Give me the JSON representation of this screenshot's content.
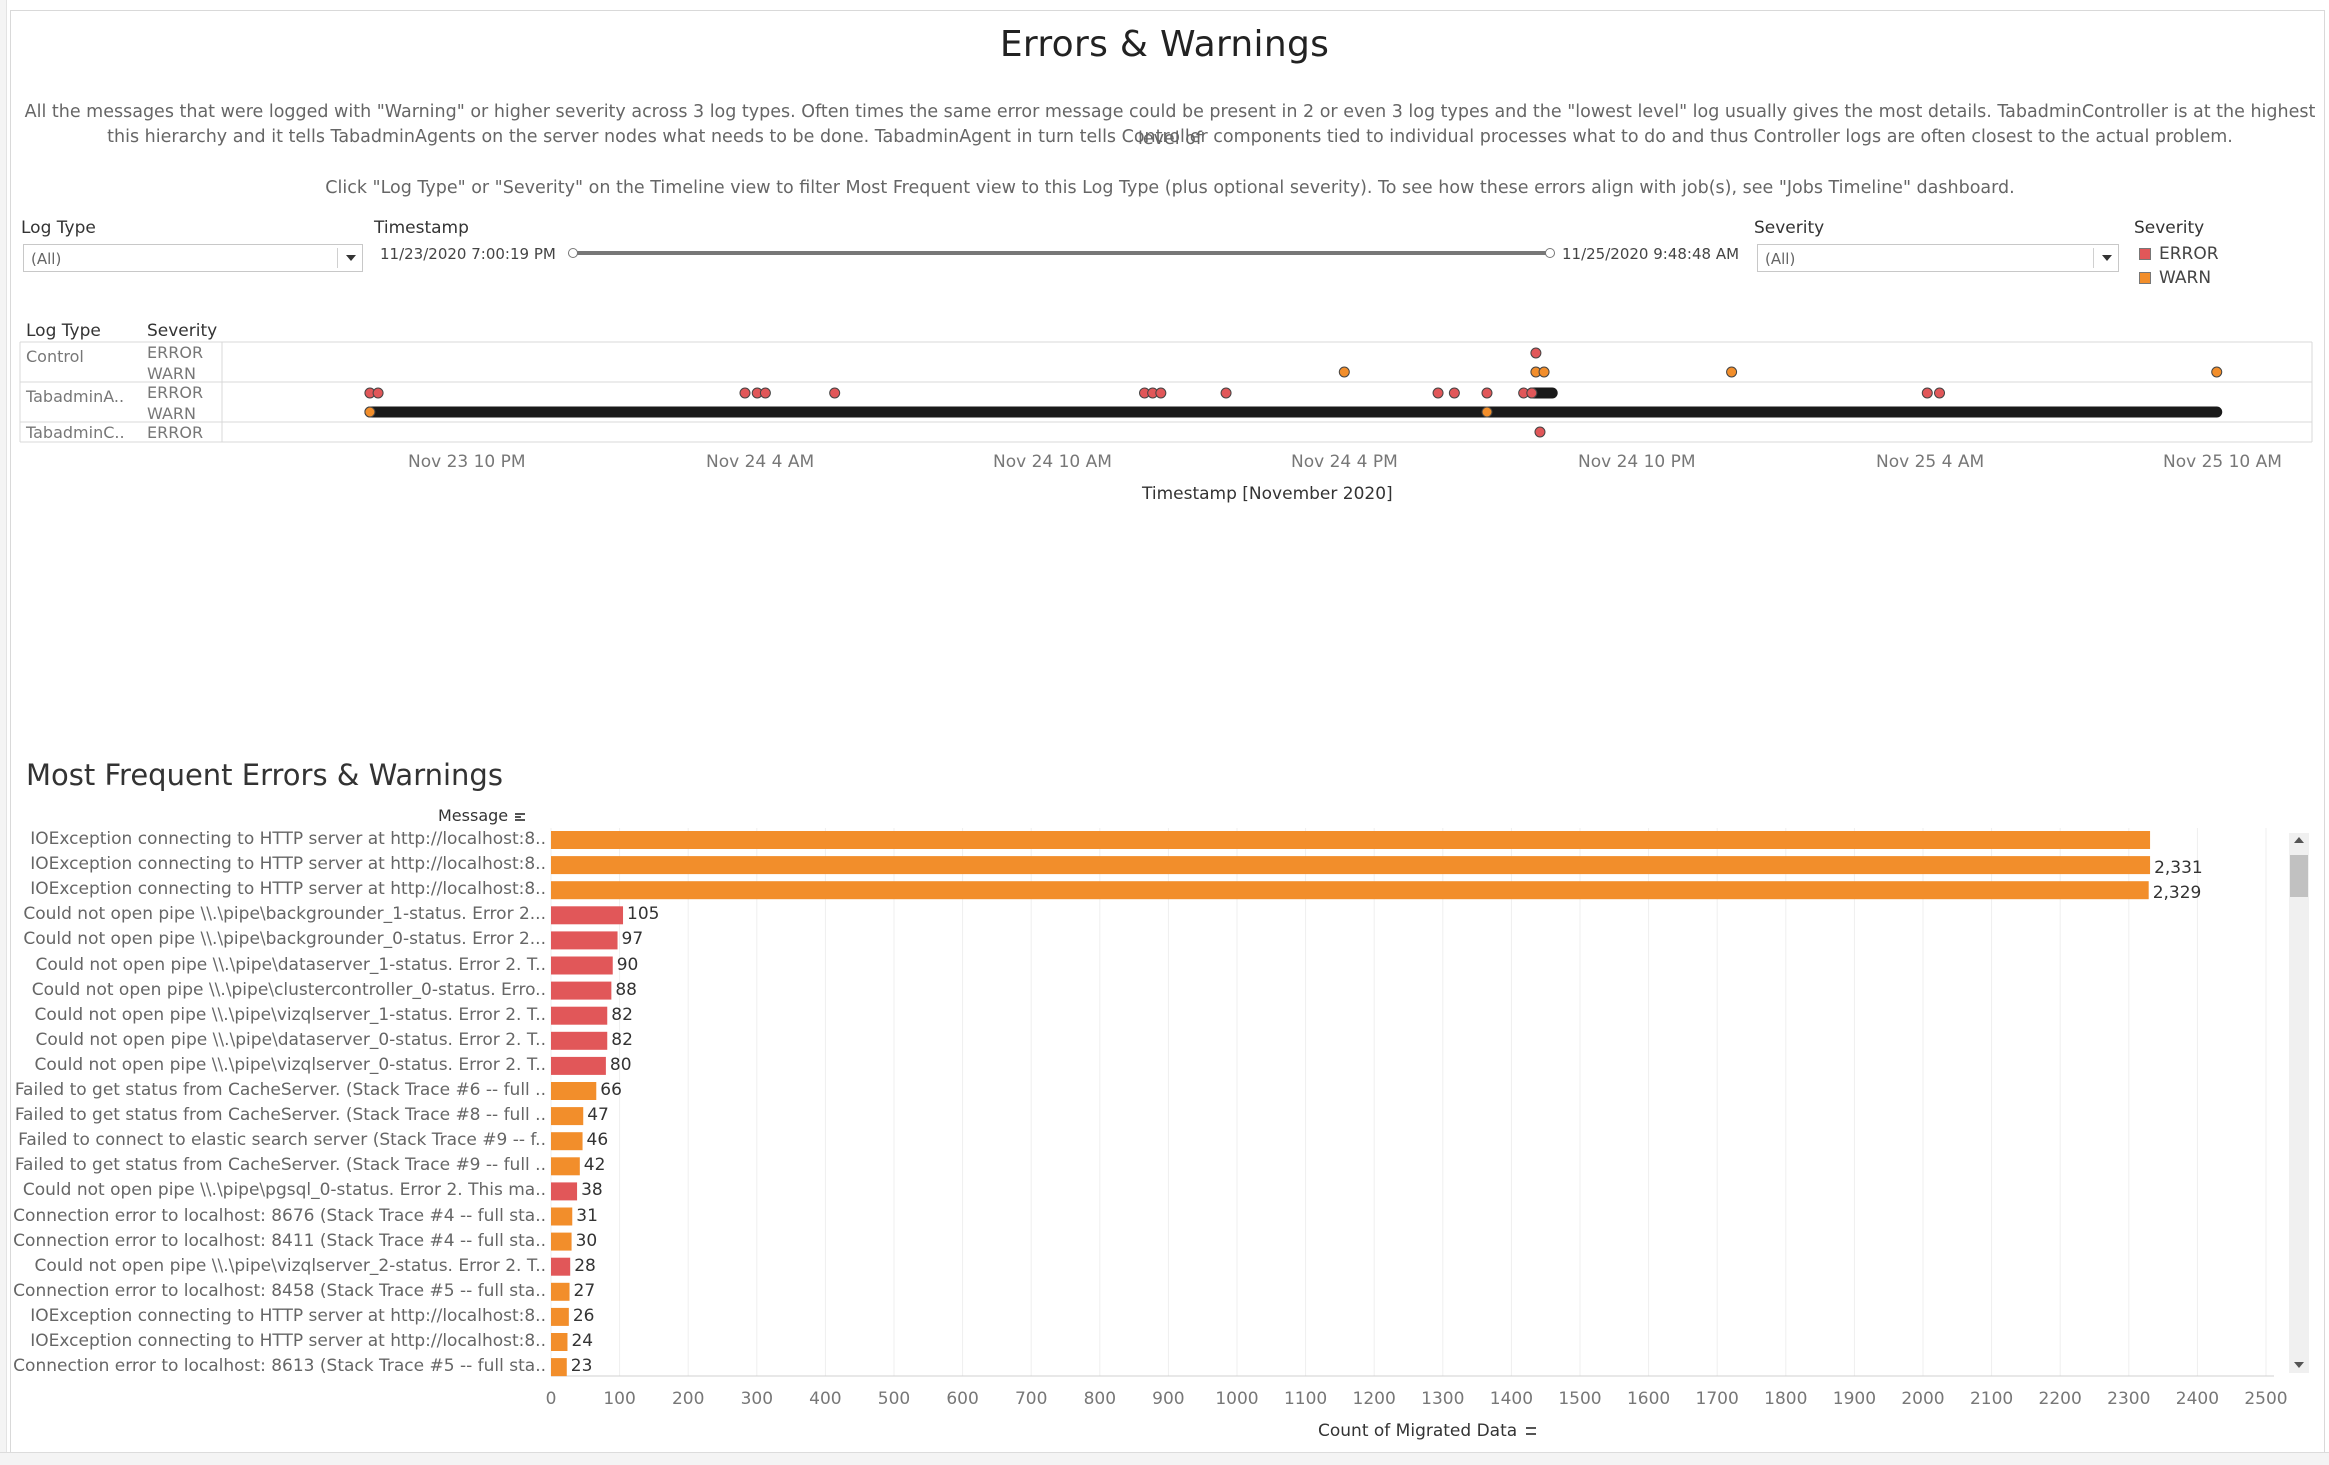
{
  "dashboard": {
    "title": "Errors & Warnings",
    "description_line1": "All the messages that were logged with \"Warning\" or higher severity across 3 log types. Often times the same error message could be present in 2 or even 3 log types and the \"lowest level\" log usually gives the most details. TabadminController is at the highest level of",
    "description_line2": "this hierarchy and it tells TabadminAgents on the server nodes what needs to be done. TabadminAgent in turn tells Controller components tied to individual processes what to do and thus Controller logs are often closest to the actual problem.",
    "instruction": "Click \"Log Type\" or \"Severity\" on the Timeline view to filter Most Frequent view to this Log Type (plus optional severity). To see how these errors align with job(s), see \"Jobs Timeline\" dashboard."
  },
  "filters": {
    "log_type": {
      "label": "Log Type",
      "value": "(All)"
    },
    "timestamp": {
      "label": "Timestamp",
      "start": "11/23/2020 7:00:19 PM",
      "end": "11/25/2020 9:48:48 AM"
    },
    "severity": {
      "label": "Severity",
      "value": "(All)"
    }
  },
  "legend": {
    "title": "Severity",
    "items": [
      {
        "label": "ERROR",
        "color": "#e15759"
      },
      {
        "label": "WARN",
        "color": "#f28e2b"
      }
    ]
  },
  "timeline": {
    "header_log_type": "Log Type",
    "header_severity": "Severity",
    "groups": [
      {
        "log_type": "Control",
        "severities": [
          "ERROR",
          "WARN"
        ]
      },
      {
        "log_type": "TabadminA..",
        "severities": [
          "ERROR",
          "WARN"
        ]
      },
      {
        "log_type": "TabadminC..",
        "severities": [
          "ERROR"
        ]
      }
    ],
    "x_ticks": [
      "Nov 23 10 PM",
      "Nov 24 4 AM",
      "Nov 24 10 AM",
      "Nov 24 4 PM",
      "Nov 24 10 PM",
      "Nov 25 4 AM",
      "Nov 25 10 AM"
    ],
    "x_axis_title": "Timestamp [November 2020]"
  },
  "chart_data": [
    {
      "type": "scatter",
      "x_axis_title": "Timestamp [November 2020]",
      "x_ticks": [
        "Nov 23 10 PM",
        "Nov 24 4 AM",
        "Nov 24 10 AM",
        "Nov 24 4 PM",
        "Nov 24 10 PM",
        "Nov 25 4 AM",
        "Nov 25 10 AM"
      ],
      "x_range": [
        "2020-11-23 19:00",
        "2020-11-25 09:49"
      ],
      "rows": [
        "Control ERROR",
        "Control WARN",
        "TabadminA.. ERROR",
        "TabadminA.. WARN",
        "TabadminC.. ERROR"
      ],
      "series": [
        {
          "name": "ERROR",
          "color": "#e15759",
          "points": [
            {
              "row": "Control ERROR",
              "x": "2020-11-24 19:50"
            },
            {
              "row": "TabadminA.. ERROR",
              "x": "2020-11-23 20:00"
            },
            {
              "row": "TabadminA.. ERROR",
              "x": "2020-11-23 20:10"
            },
            {
              "row": "TabadminA.. ERROR",
              "x": "2020-11-24 03:40"
            },
            {
              "row": "TabadminA.. ERROR",
              "x": "2020-11-24 03:55"
            },
            {
              "row": "TabadminA.. ERROR",
              "x": "2020-11-24 04:05"
            },
            {
              "row": "TabadminA.. ERROR",
              "x": "2020-11-24 05:30"
            },
            {
              "row": "TabadminA.. ERROR",
              "x": "2020-11-24 11:50"
            },
            {
              "row": "TabadminA.. ERROR",
              "x": "2020-11-24 12:00"
            },
            {
              "row": "TabadminA.. ERROR",
              "x": "2020-11-24 12:10"
            },
            {
              "row": "TabadminA.. ERROR",
              "x": "2020-11-24 13:30"
            },
            {
              "row": "TabadminA.. ERROR",
              "x": "2020-11-24 17:50"
            },
            {
              "row": "TabadminA.. ERROR",
              "x": "2020-11-24 18:10"
            },
            {
              "row": "TabadminA.. ERROR",
              "x": "2020-11-24 18:50"
            },
            {
              "row": "TabadminA.. ERROR",
              "x": "2020-11-24 19:35"
            },
            {
              "row": "TabadminA.. ERROR",
              "x": "2020-11-24 19:45"
            },
            {
              "row": "TabadminA.. ERROR",
              "x": "2020-11-25 03:50"
            },
            {
              "row": "TabadminA.. ERROR",
              "x": "2020-11-25 04:05"
            },
            {
              "row": "TabadminC.. ERROR",
              "x": "2020-11-24 19:55"
            }
          ]
        },
        {
          "name": "WARN",
          "color": "#f28e2b",
          "points": [
            {
              "row": "Control WARN",
              "x": "2020-11-24 15:55"
            },
            {
              "row": "Control WARN",
              "x": "2020-11-24 19:50"
            },
            {
              "row": "Control WARN",
              "x": "2020-11-24 20:00"
            },
            {
              "row": "Control WARN",
              "x": "2020-11-24 23:50"
            },
            {
              "row": "Control WARN",
              "x": "2020-11-25 09:45"
            },
            {
              "row": "TabadminA.. WARN",
              "x": "2020-11-23 20:00"
            },
            {
              "row": "TabadminA.. WARN",
              "x": "2020-11-24 18:50"
            }
          ]
        },
        {
          "name": "WARN (dense run)",
          "color": "#1a1a1a",
          "ranges": [
            {
              "row": "TabadminA.. WARN",
              "x_start": "2020-11-23 20:00",
              "x_end": "2020-11-25 09:45"
            },
            {
              "row": "TabadminA.. ERROR",
              "x_start": "2020-11-24 19:45",
              "x_end": "2020-11-24 20:10"
            }
          ]
        }
      ]
    },
    {
      "type": "bar",
      "title": "Most Frequent Errors & Warnings",
      "ylabel": "Message",
      "xlabel": "Count of Migrated Data",
      "xlim": [
        0,
        2500
      ],
      "x_ticks": [
        0,
        100,
        200,
        300,
        400,
        500,
        600,
        700,
        800,
        900,
        1000,
        1100,
        1200,
        1300,
        1400,
        1500,
        1600,
        1700,
        1800,
        1900,
        2000,
        2100,
        2200,
        2300,
        2400,
        2500
      ],
      "bars": [
        {
          "label": "IOException connecting to HTTP server at http://localhost:8..",
          "value": 2331,
          "severity": "WARN",
          "show_value": false
        },
        {
          "label": "IOException connecting to HTTP server at http://localhost:8..",
          "value": 2331,
          "severity": "WARN",
          "display": "2,331"
        },
        {
          "label": "IOException connecting to HTTP server at http://localhost:8..",
          "value": 2329,
          "severity": "WARN",
          "display": "2,329"
        },
        {
          "label": "Could not open pipe \\\\.\\pipe\\backgrounder_1-status. Error 2...",
          "value": 105,
          "severity": "ERROR",
          "display": "105"
        },
        {
          "label": "Could not open pipe \\\\.\\pipe\\backgrounder_0-status. Error 2...",
          "value": 97,
          "severity": "ERROR",
          "display": "97"
        },
        {
          "label": "Could not open pipe \\\\.\\pipe\\dataserver_1-status. Error 2. T..",
          "value": 90,
          "severity": "ERROR",
          "display": "90"
        },
        {
          "label": "Could not open pipe \\\\.\\pipe\\clustercontroller_0-status. Erro..",
          "value": 88,
          "severity": "ERROR",
          "display": "88"
        },
        {
          "label": "Could not open pipe \\\\.\\pipe\\vizqlserver_1-status. Error 2. T..",
          "value": 82,
          "severity": "ERROR",
          "display": "82"
        },
        {
          "label": "Could not open pipe \\\\.\\pipe\\dataserver_0-status. Error 2. T..",
          "value": 82,
          "severity": "ERROR",
          "display": "82"
        },
        {
          "label": "Could not open pipe \\\\.\\pipe\\vizqlserver_0-status. Error 2. T..",
          "value": 80,
          "severity": "ERROR",
          "display": "80"
        },
        {
          "label": "Failed to get status from CacheServer. (Stack Trace #6 -- full ..",
          "value": 66,
          "severity": "WARN",
          "display": "66"
        },
        {
          "label": "Failed to get status from CacheServer. (Stack Trace #8 -- full ..",
          "value": 47,
          "severity": "WARN",
          "display": "47"
        },
        {
          "label": "Failed to connect to elastic search server (Stack Trace #9 -- f..",
          "value": 46,
          "severity": "WARN",
          "display": "46"
        },
        {
          "label": "Failed to get status from CacheServer. (Stack Trace #9 -- full ..",
          "value": 42,
          "severity": "WARN",
          "display": "42"
        },
        {
          "label": "Could not open pipe \\\\.\\pipe\\pgsql_0-status. Error 2. This ma..",
          "value": 38,
          "severity": "ERROR",
          "display": "38"
        },
        {
          "label": "Connection error to localhost: 8676 (Stack Trace #4 -- full sta..",
          "value": 31,
          "severity": "WARN",
          "display": "31"
        },
        {
          "label": "Connection error to localhost: 8411 (Stack Trace #4 -- full sta..",
          "value": 30,
          "severity": "WARN",
          "display": "30"
        },
        {
          "label": "Could not open pipe \\\\.\\pipe\\vizqlserver_2-status. Error 2. T..",
          "value": 28,
          "severity": "ERROR",
          "display": "28"
        },
        {
          "label": "Connection error to localhost: 8458 (Stack Trace #5 -- full sta..",
          "value": 27,
          "severity": "WARN",
          "display": "27"
        },
        {
          "label": "IOException connecting to HTTP server at http://localhost:8..",
          "value": 26,
          "severity": "WARN",
          "display": "26"
        },
        {
          "label": "IOException connecting to HTTP server at http://localhost:8..",
          "value": 24,
          "severity": "WARN",
          "display": "24"
        },
        {
          "label": "Connection error to localhost: 8613 (Stack Trace #5 -- full sta..",
          "value": 23,
          "severity": "WARN",
          "display": "23"
        }
      ]
    }
  ],
  "colors": {
    "error": "#e15759",
    "warn": "#f28e2b"
  },
  "icons": {
    "sort": "sort-icon",
    "dropdown": "chevron-down-icon",
    "scroll_up": "scroll-up-arrow-icon",
    "scroll_down": "scroll-down-arrow-icon"
  }
}
